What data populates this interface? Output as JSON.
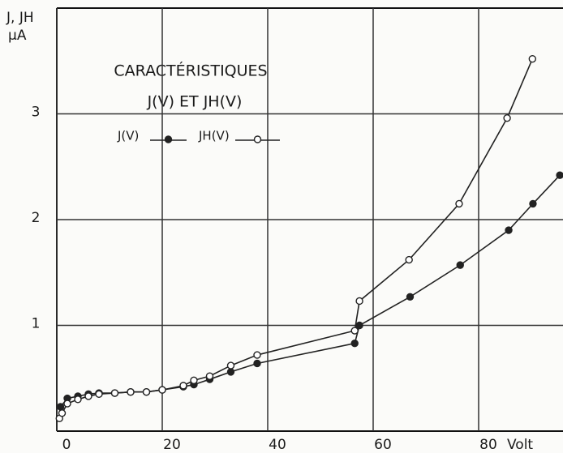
{
  "chart_data": {
    "type": "line",
    "title": "CARACTÉRISTIQUES",
    "subtitle": "J(V) ET JH(V)",
    "ylabel": "J, JH",
    "yunit": "μA",
    "xlabel": "Volt",
    "xlim": [
      0,
      96
    ],
    "xticks": [
      0,
      20,
      40,
      60,
      80
    ],
    "ylim": [
      0,
      4
    ],
    "yticks": [
      1,
      2,
      3
    ],
    "grid": true,
    "series": [
      {
        "name": "J(V)",
        "color": "#222",
        "marker_fill": "#222",
        "x": [
          0.7,
          2,
          4,
          6,
          8,
          11,
          14,
          17,
          20,
          24,
          26,
          29,
          33,
          38,
          56.5,
          57.4,
          67,
          76.5,
          85.7,
          90.3,
          95.4
        ],
        "values": [
          0.23,
          0.31,
          0.33,
          0.35,
          0.36,
          0.36,
          0.37,
          0.37,
          0.39,
          0.42,
          0.44,
          0.49,
          0.56,
          0.64,
          0.83,
          1.0,
          1.27,
          1.57,
          1.9,
          2.15,
          2.42
        ]
      },
      {
        "name": "JH(V)",
        "color": "#222",
        "marker_fill": "#fff",
        "x": [
          0.5,
          1,
          2,
          4,
          6,
          8,
          11,
          14,
          17,
          20,
          24,
          26,
          29,
          33,
          38,
          56.5,
          57.4,
          66.8,
          76.3,
          85.4,
          90.2
        ],
        "values": [
          0.12,
          0.17,
          0.26,
          0.3,
          0.33,
          0.35,
          0.36,
          0.37,
          0.37,
          0.39,
          0.43,
          0.48,
          0.52,
          0.62,
          0.72,
          0.95,
          1.23,
          1.62,
          2.15,
          2.96,
          3.52
        ]
      }
    ]
  }
}
